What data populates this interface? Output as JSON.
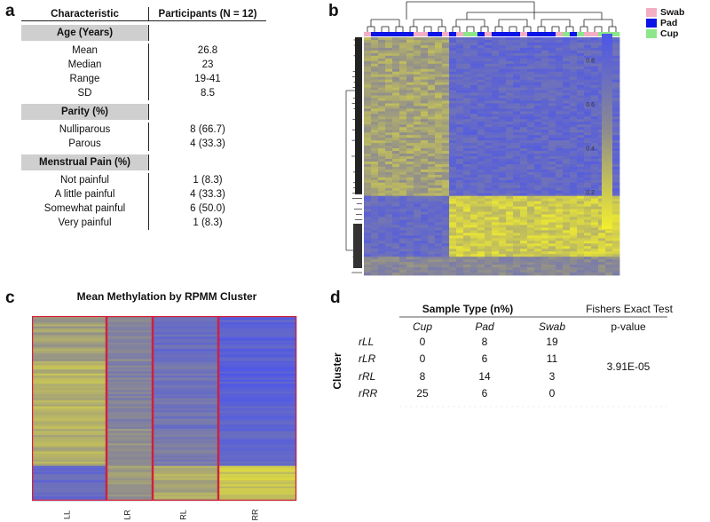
{
  "panels": {
    "a": "a",
    "b": "b",
    "c": "c",
    "d": "d"
  },
  "tableA": {
    "header": {
      "characteristic": "Characteristic",
      "participants": "Participants (N = 12)"
    },
    "sections": [
      {
        "title": "Age (Years)",
        "rows": [
          {
            "label": "Mean",
            "value": "26.8"
          },
          {
            "label": "Median",
            "value": "23"
          },
          {
            "label": "Range",
            "value": "19-41"
          },
          {
            "label": "SD",
            "value": "8.5"
          }
        ]
      },
      {
        "title": "Parity (%)",
        "rows": [
          {
            "label": "Nulliparous",
            "value": "8 (66.7)"
          },
          {
            "label": "Parous",
            "value": "4 (33.3)"
          }
        ]
      },
      {
        "title": "Menstrual Pain (%)",
        "rows": [
          {
            "label": "Not painful",
            "value": "1 (8.3)"
          },
          {
            "label": "A little painful",
            "value": "4 (33.3)"
          },
          {
            "label": "Somewhat painful",
            "value": "6 (50.0)"
          },
          {
            "label": "Very painful",
            "value": "1 (8.3)"
          }
        ]
      }
    ]
  },
  "heatmapB": {
    "legend": [
      {
        "label": "Swab",
        "color": "#f4aec3"
      },
      {
        "label": "Pad",
        "color": "#0a14e6"
      },
      {
        "label": "Cup",
        "color": "#8ee68a"
      }
    ],
    "colorbar_ticks": [
      "0.8",
      "0.6",
      "0.4",
      "0.2"
    ],
    "colorbar_values": [
      0.8,
      0.6,
      0.4,
      0.2
    ],
    "colors": {
      "high": "#4c55ea",
      "mid": "#8e8c8e",
      "low": "#f3ef2c"
    }
  },
  "heatmapC": {
    "title": "Mean Methylation by RPMM Cluster",
    "columns": [
      "LL",
      "LR",
      "RL",
      "RR"
    ],
    "border_color": "#d21f3c"
  },
  "tableD": {
    "group_header": "Sample Type  (n%)",
    "test_header": "Fishers Exact Test",
    "pvalue_header": "p-value",
    "columns": [
      "Cup",
      "Pad",
      "Swab"
    ],
    "row_axis_label": "Cluster",
    "rows": [
      {
        "label": "rLL",
        "values": [
          "0",
          "8",
          "19"
        ]
      },
      {
        "label": "rLR",
        "values": [
          "0",
          "6",
          "11"
        ]
      },
      {
        "label": "rRL",
        "values": [
          "8",
          "14",
          "3"
        ]
      },
      {
        "label": "rRR",
        "values": [
          "25",
          "6",
          "0"
        ]
      }
    ],
    "pvalue": "3.91E-05"
  }
}
